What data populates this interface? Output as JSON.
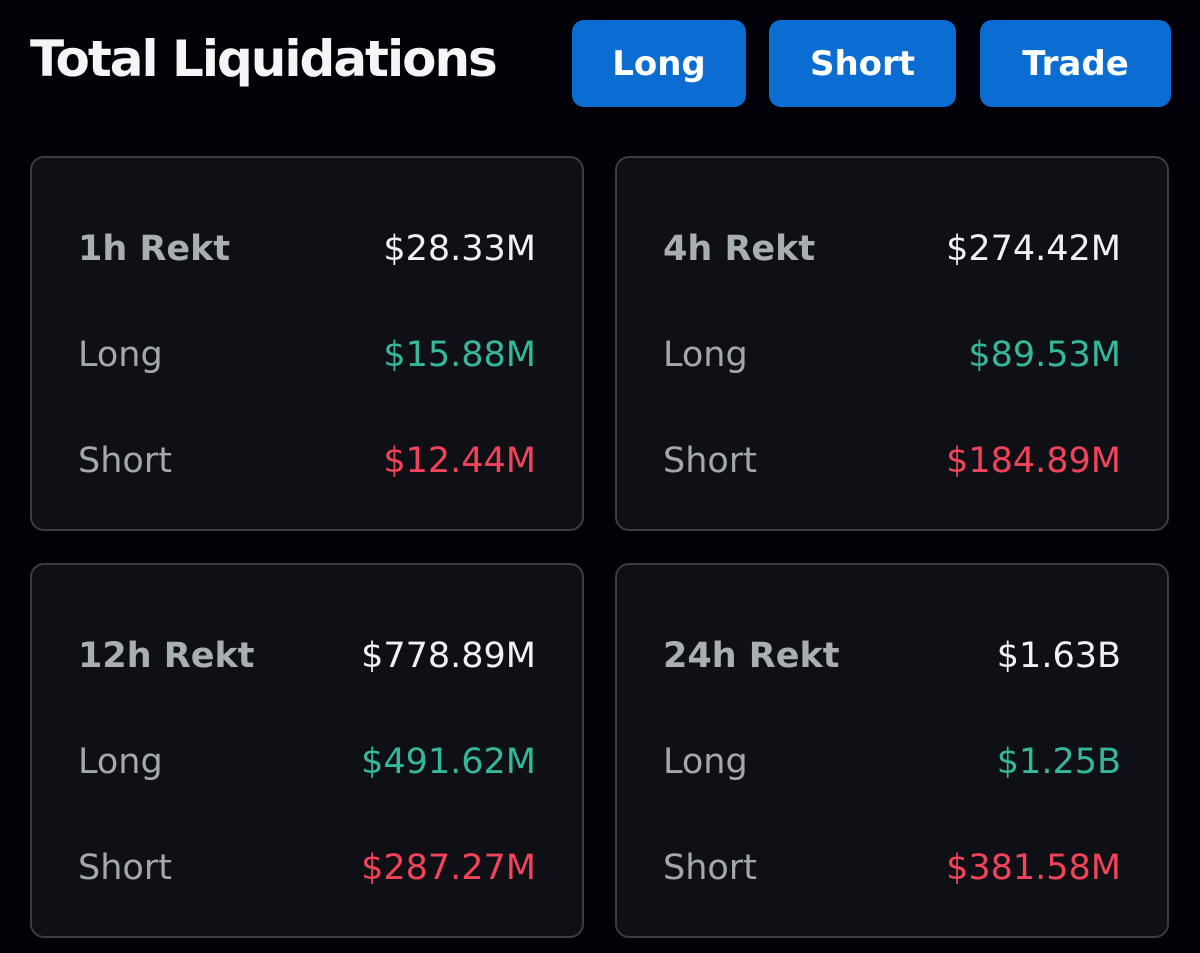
{
  "header": {
    "title": "Total Liquidations",
    "buttons": [
      "Long",
      "Short",
      "Trade"
    ]
  },
  "cards": [
    {
      "rows": [
        [
          "1h Rekt",
          "$28.33M"
        ],
        [
          "Long",
          "$15.88M"
        ],
        [
          "Short",
          "$12.44M"
        ]
      ]
    },
    {
      "rows": [
        [
          "4h Rekt",
          "$274.42M"
        ],
        [
          "Long",
          "$89.53M"
        ],
        [
          "Short",
          "$184.89M"
        ]
      ]
    },
    {
      "rows": [
        [
          "12h Rekt",
          "$778.89M"
        ],
        [
          "Long",
          "$491.62M"
        ],
        [
          "Short",
          "$287.27M"
        ]
      ]
    },
    {
      "rows": [
        [
          "24h Rekt",
          "$1.63B"
        ],
        [
          "Long",
          "$1.25B"
        ],
        [
          "Short",
          "$381.58M"
        ]
      ]
    }
  ]
}
